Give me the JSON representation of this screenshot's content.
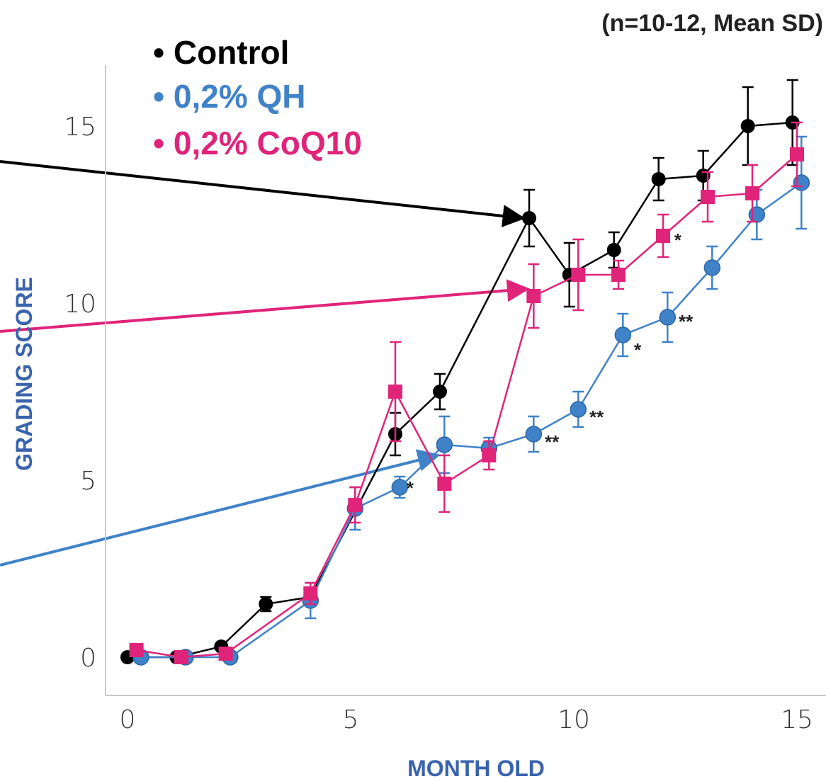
{
  "chart_data": {
    "type": "line",
    "title": "",
    "note": "(n=10-12, Mean SD)",
    "xlabel": "MONTH OLD",
    "ylabel": "GRADING SCORE",
    "xlim": [
      -0.5,
      15.5
    ],
    "ylim": [
      -0.7,
      16.5
    ],
    "xticks": [
      0,
      5,
      10,
      15
    ],
    "yticks": [
      0,
      5,
      10,
      15
    ],
    "grid": false,
    "legend_position": "top-left",
    "series": [
      {
        "name": "Control",
        "color": "#000000",
        "marker": "circle",
        "x": [
          0,
          1.1,
          2.1,
          3.1,
          4.1,
          6.0,
          7.0,
          9.0,
          9.9,
          10.9,
          11.9,
          12.9,
          13.9,
          14.9
        ],
        "y": [
          0,
          0,
          0.3,
          1.5,
          1.7,
          6.3,
          7.5,
          12.4,
          10.8,
          11.5,
          13.5,
          13.6,
          15.0,
          15.1
        ],
        "err": [
          0,
          0,
          0,
          0.2,
          0.2,
          0.6,
          0.5,
          0.8,
          0.9,
          0.5,
          0.6,
          0.7,
          1.1,
          1.2
        ]
      },
      {
        "name": "0,2% QH",
        "color": "#3f82c8",
        "marker": "circle",
        "x": [
          0.3,
          1.3,
          2.3,
          4.1,
          5.1,
          6.1,
          7.1,
          8.1,
          9.1,
          10.1,
          11.1,
          12.1,
          13.1,
          14.1,
          15.1
        ],
        "y": [
          0,
          0,
          0,
          1.6,
          4.2,
          4.8,
          6.0,
          5.9,
          6.3,
          7.0,
          9.1,
          9.6,
          11.0,
          12.5,
          13.4
        ],
        "err": [
          0,
          0,
          0,
          0.5,
          0.6,
          0.3,
          0.8,
          0.3,
          0.5,
          0.5,
          0.6,
          0.7,
          0.6,
          0.7,
          1.3
        ]
      },
      {
        "name": "0,2% CoQ10",
        "color": "#e0247a",
        "marker": "square",
        "x": [
          0.2,
          1.2,
          2.2,
          4.1,
          5.1,
          6.0,
          7.1,
          8.1,
          9.1,
          10.1,
          11.0,
          12.0,
          13.0,
          14.0,
          15.0
        ],
        "y": [
          0.2,
          0,
          0.1,
          1.8,
          4.3,
          7.5,
          4.9,
          5.7,
          10.2,
          10.8,
          10.8,
          11.9,
          13.0,
          13.1,
          14.2
        ],
        "err": [
          0,
          0,
          0,
          0.3,
          0.5,
          1.4,
          0.8,
          0.4,
          0.9,
          1.0,
          0.4,
          0.6,
          0.7,
          0.8,
          0.9
        ]
      }
    ],
    "annotations": [
      {
        "text": "*",
        "x": 6.25,
        "y": 4.8
      },
      {
        "text": "**",
        "x": 9.35,
        "y": 6.1
      },
      {
        "text": "**",
        "x": 10.35,
        "y": 6.8
      },
      {
        "text": "*",
        "x": 11.35,
        "y": 8.7
      },
      {
        "text": "**",
        "x": 12.35,
        "y": 9.5
      },
      {
        "text": "*",
        "x": 12.25,
        "y": 11.8
      }
    ],
    "arrows": [
      {
        "color": "#000000",
        "to_x": 8.85,
        "to_y": 12.4
      },
      {
        "color": "#e0247a",
        "to_x": 8.95,
        "to_y": 10.4
      },
      {
        "color": "#3f82c8",
        "to_x": 6.95,
        "to_y": 5.7
      }
    ]
  }
}
